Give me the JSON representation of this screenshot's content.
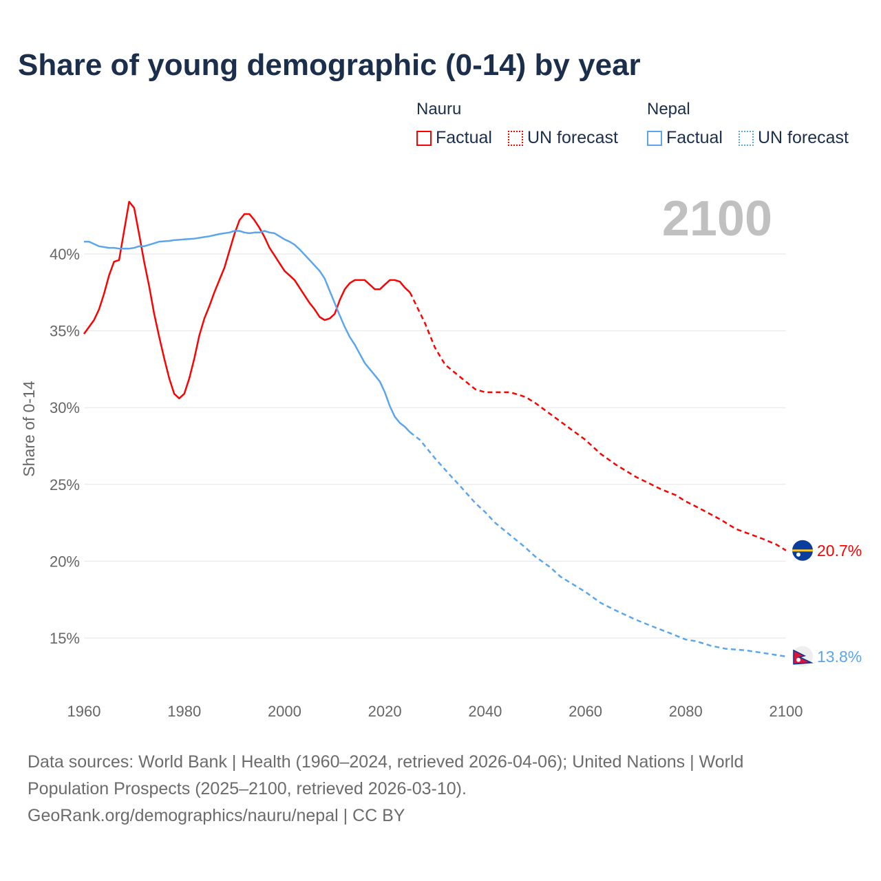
{
  "chart_data": {
    "type": "line",
    "title": "Share of young demographic (0-14) by year",
    "xlabel": "",
    "ylabel": "Share of 0-14",
    "xlim": [
      1960,
      2100
    ],
    "ylim": [
      12,
      44.5
    ],
    "x_ticks": [
      "1960",
      "1980",
      "2000",
      "2020",
      "2040",
      "2060",
      "2080",
      "2100"
    ],
    "y_ticks": [
      {
        "v": 15,
        "label": "15%"
      },
      {
        "v": 20,
        "label": "20%"
      },
      {
        "v": 25,
        "label": "25%"
      },
      {
        "v": 30,
        "label": "30%"
      },
      {
        "v": 35,
        "label": "35%"
      },
      {
        "v": 40,
        "label": "40%"
      }
    ],
    "grid": true,
    "year_watermark": "2100",
    "legend": {
      "placement": "top-right",
      "groups": [
        {
          "name": "Nauru",
          "factual": "Factual",
          "forecast": "UN forecast"
        },
        {
          "name": "Nepal",
          "factual": "Factual",
          "forecast": "UN forecast"
        }
      ]
    },
    "series": [
      {
        "name": "Nauru",
        "color": "#ff0000",
        "end_label": "20.7%",
        "factual": [
          [
            1960,
            34.8
          ],
          [
            1962,
            35.7
          ],
          [
            1963,
            36.4
          ],
          [
            1964,
            37.4
          ],
          [
            1965,
            38.6
          ],
          [
            1966,
            39.5
          ],
          [
            1967,
            39.6
          ],
          [
            1969,
            43.4
          ],
          [
            1970,
            43.0
          ],
          [
            1971,
            41.3
          ],
          [
            1972,
            39.5
          ],
          [
            1973,
            37.9
          ],
          [
            1974,
            36.1
          ],
          [
            1975,
            34.6
          ],
          [
            1976,
            33.2
          ],
          [
            1977,
            31.9
          ],
          [
            1978,
            30.9
          ],
          [
            1979,
            30.6
          ],
          [
            1980,
            30.9
          ],
          [
            1981,
            31.9
          ],
          [
            1982,
            33.2
          ],
          [
            1983,
            34.7
          ],
          [
            1984,
            35.8
          ],
          [
            1985,
            36.6
          ],
          [
            1986,
            37.5
          ],
          [
            1987,
            38.3
          ],
          [
            1988,
            39.1
          ],
          [
            1989,
            40.2
          ],
          [
            1990,
            41.3
          ],
          [
            1991,
            42.2
          ],
          [
            1992,
            42.6
          ],
          [
            1993,
            42.6
          ],
          [
            1994,
            42.2
          ],
          [
            1995,
            41.7
          ],
          [
            1996,
            41.1
          ],
          [
            1997,
            40.4
          ],
          [
            1998,
            39.9
          ],
          [
            1999,
            39.4
          ],
          [
            2000,
            38.9
          ],
          [
            2001,
            38.6
          ],
          [
            2002,
            38.3
          ],
          [
            2003,
            37.8
          ],
          [
            2004,
            37.3
          ],
          [
            2005,
            36.8
          ],
          [
            2006,
            36.4
          ],
          [
            2007,
            35.9
          ],
          [
            2008,
            35.7
          ],
          [
            2009,
            35.8
          ],
          [
            2010,
            36.1
          ],
          [
            2011,
            37.0
          ],
          [
            2012,
            37.7
          ],
          [
            2013,
            38.1
          ],
          [
            2014,
            38.3
          ],
          [
            2015,
            38.3
          ],
          [
            2016,
            38.3
          ],
          [
            2017,
            38.0
          ],
          [
            2018,
            37.7
          ],
          [
            2019,
            37.7
          ],
          [
            2020,
            38.0
          ],
          [
            2021,
            38.3
          ],
          [
            2022,
            38.3
          ],
          [
            2023,
            38.2
          ],
          [
            2024,
            37.8
          ],
          [
            2025,
            37.5
          ]
        ],
        "forecast": [
          [
            2025,
            37.5
          ],
          [
            2028,
            35.5
          ],
          [
            2030,
            33.9
          ],
          [
            2032,
            32.8
          ],
          [
            2035,
            32.0
          ],
          [
            2038,
            31.2
          ],
          [
            2040,
            31.0
          ],
          [
            2045,
            31.0
          ],
          [
            2048,
            30.7
          ],
          [
            2050,
            30.3
          ],
          [
            2055,
            29.1
          ],
          [
            2060,
            27.9
          ],
          [
            2063,
            27.0
          ],
          [
            2066,
            26.3
          ],
          [
            2070,
            25.5
          ],
          [
            2075,
            24.7
          ],
          [
            2078,
            24.3
          ],
          [
            2080,
            23.9
          ],
          [
            2083,
            23.4
          ],
          [
            2087,
            22.7
          ],
          [
            2090,
            22.1
          ],
          [
            2095,
            21.5
          ],
          [
            2098,
            21.1
          ],
          [
            2100,
            20.7
          ]
        ]
      },
      {
        "name": "Nepal",
        "color": "#5aa5ee",
        "end_label": "13.8%",
        "factual": [
          [
            1960,
            40.8
          ],
          [
            1961,
            40.8
          ],
          [
            1963,
            40.5
          ],
          [
            1965,
            40.4
          ],
          [
            1966,
            40.4
          ],
          [
            1967,
            40.35
          ],
          [
            1969,
            40.35
          ],
          [
            1970,
            40.4
          ],
          [
            1971,
            40.5
          ],
          [
            1972,
            40.5
          ],
          [
            1974,
            40.7
          ],
          [
            1975,
            40.8
          ],
          [
            1977,
            40.85
          ],
          [
            1978,
            40.9
          ],
          [
            1980,
            40.95
          ],
          [
            1982,
            41.0
          ],
          [
            1984,
            41.1
          ],
          [
            1985,
            41.15
          ],
          [
            1987,
            41.3
          ],
          [
            1989,
            41.4
          ],
          [
            1990,
            41.5
          ],
          [
            1991,
            41.5
          ],
          [
            1992,
            41.4
          ],
          [
            1993,
            41.35
          ],
          [
            1994,
            41.4
          ],
          [
            1995,
            41.4
          ],
          [
            1996,
            41.5
          ],
          [
            1997,
            41.4
          ],
          [
            1998,
            41.35
          ],
          [
            1999,
            41.15
          ],
          [
            2000,
            40.95
          ],
          [
            2001,
            40.8
          ],
          [
            2002,
            40.6
          ],
          [
            2003,
            40.3
          ],
          [
            2005,
            39.6
          ],
          [
            2007,
            38.9
          ],
          [
            2008,
            38.4
          ],
          [
            2009,
            37.6
          ],
          [
            2010,
            36.8
          ],
          [
            2011,
            36.0
          ],
          [
            2012,
            35.25
          ],
          [
            2013,
            34.6
          ],
          [
            2014,
            34.1
          ],
          [
            2015,
            33.5
          ],
          [
            2016,
            32.9
          ],
          [
            2017,
            32.5
          ],
          [
            2018,
            32.1
          ],
          [
            2019,
            31.7
          ],
          [
            2020,
            31.0
          ],
          [
            2021,
            30.1
          ],
          [
            2022,
            29.4
          ],
          [
            2023,
            29.0
          ],
          [
            2024,
            28.75
          ],
          [
            2025,
            28.4
          ]
        ],
        "forecast": [
          [
            2025,
            28.4
          ],
          [
            2027,
            27.9
          ],
          [
            2030,
            26.7
          ],
          [
            2033,
            25.6
          ],
          [
            2035,
            24.9
          ],
          [
            2038,
            23.8
          ],
          [
            2040,
            23.2
          ],
          [
            2042,
            22.5
          ],
          [
            2045,
            21.7
          ],
          [
            2048,
            20.9
          ],
          [
            2050,
            20.3
          ],
          [
            2053,
            19.6
          ],
          [
            2055,
            19.0
          ],
          [
            2058,
            18.4
          ],
          [
            2060,
            18.0
          ],
          [
            2063,
            17.3
          ],
          [
            2066,
            16.8
          ],
          [
            2070,
            16.2
          ],
          [
            2073,
            15.8
          ],
          [
            2077,
            15.3
          ],
          [
            2080,
            14.9
          ],
          [
            2082,
            14.8
          ],
          [
            2085,
            14.5
          ],
          [
            2088,
            14.3
          ],
          [
            2092,
            14.2
          ],
          [
            2095,
            14.05
          ],
          [
            2098,
            13.9
          ],
          [
            2100,
            13.8
          ]
        ]
      }
    ]
  },
  "footer": {
    "sources": "Data sources: World Bank | Health (1960–2024, retrieved 2026-04-06); United Nations | World Population Prospects (2025–2100, retrieved 2026-03-10).",
    "credit": "GeoRank.org/demographics/nauru/nepal | CC BY"
  }
}
